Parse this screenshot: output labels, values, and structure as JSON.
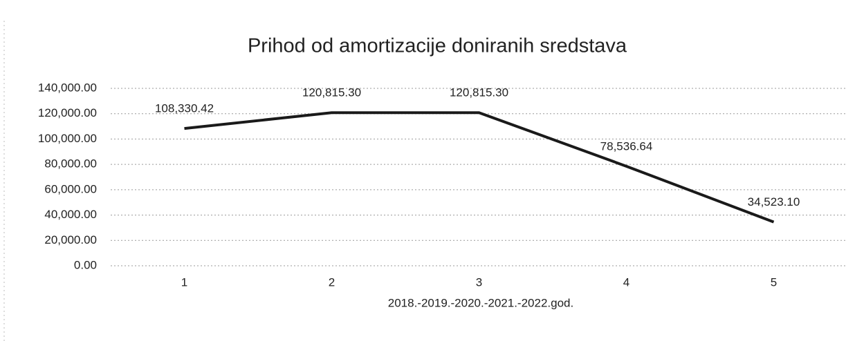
{
  "chart_data": {
    "type": "line",
    "title": "Prihod od amortizacije doniranih sredstava",
    "x_label": "2018.-2019.-2020.-2021.-2022.god.",
    "categories": [
      "1",
      "2",
      "3",
      "4",
      "5"
    ],
    "series": [
      {
        "name": "Prihod od amortizacije doniranih sredstava",
        "color": "#1a1a1a",
        "values": [
          108330.42,
          120815.3,
          120815.3,
          78536.64,
          34523.1
        ],
        "value_labels": [
          "108,330.42",
          "120,815.30",
          "120,815.30",
          "78,536.64",
          "34,523.10"
        ]
      }
    ],
    "ylim": [
      0,
      140000
    ],
    "yticks": [
      {
        "value": 0,
        "label": "0.00"
      },
      {
        "value": 20000,
        "label": "20,000.00"
      },
      {
        "value": 40000,
        "label": "40,000.00"
      },
      {
        "value": 60000,
        "label": "60,000.00"
      },
      {
        "value": 80000,
        "label": "80,000.00"
      },
      {
        "value": 100000,
        "label": "100,000.00"
      },
      {
        "value": 120000,
        "label": "120,000.00"
      },
      {
        "value": 140000,
        "label": "140,000.00"
      }
    ],
    "grid": true
  }
}
